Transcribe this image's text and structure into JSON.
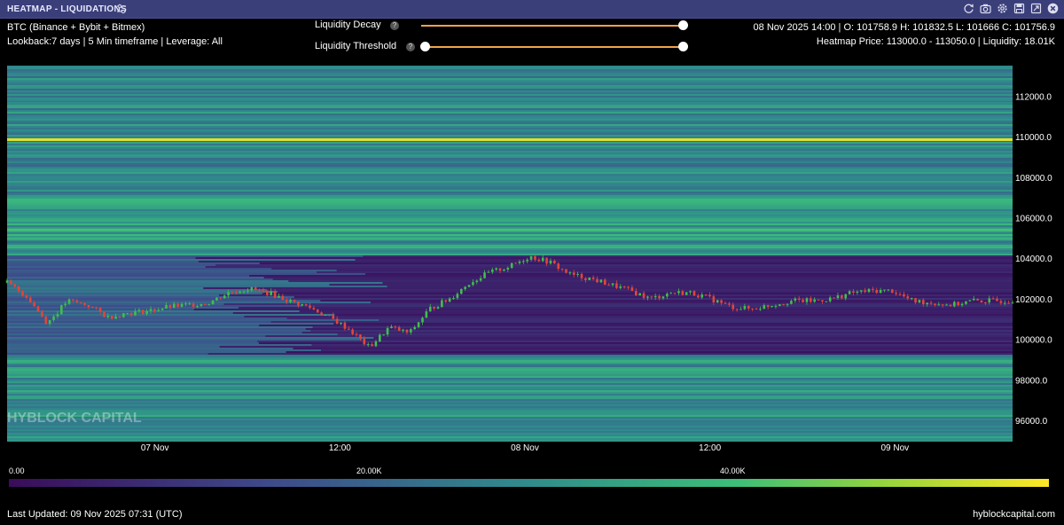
{
  "window": {
    "title": "HEATMAP - LIQUIDATIONS",
    "icons": [
      "settings-sliders-icon",
      "refresh-icon",
      "camera-icon",
      "gear-icon",
      "save-icon",
      "expand-icon",
      "close-icon"
    ]
  },
  "info": {
    "asset": "BTC (Binance + Bybit + Bitmex)",
    "params": "Lookback:7 days | 5 Min timeframe | Leverage: All"
  },
  "controls": {
    "decay_label": "Liquidity Decay",
    "decay_value": 1.0,
    "threshold_label": "Liquidity Threshold",
    "threshold_range": [
      0.0,
      1.0
    ],
    "help_glyph": "?"
  },
  "ohlc": {
    "line": "08 Nov 2025 14:00 | O: 101758.9 H: 101832.5 L: 101666 C: 101756.9",
    "heatmap": "Heatmap Price: 113000.0 - 113050.0 | Liquidity: 18.01K"
  },
  "chart_data": {
    "type": "heatmap",
    "title": "",
    "xlabel": "",
    "ylabel": "",
    "ylim": [
      95000,
      113500
    ],
    "x_ticks": [
      "07 Nov",
      "12:00",
      "08 Nov",
      "12:00",
      "09 Nov"
    ],
    "y_ticks": [
      "112000.0",
      "110000.0",
      "108000.0",
      "106000.0",
      "104000.0",
      "102000.0",
      "100000.0",
      "98000.0",
      "96000.0"
    ],
    "colorbar": {
      "ticks": [
        "0.00",
        "20.00K",
        "40.00K"
      ],
      "colors": [
        "#3a0c5a",
        "#3e4a8a",
        "#2f8c8c",
        "#3cbf78",
        "#9ad63a",
        "#fde725"
      ]
    },
    "bright_bands": [
      {
        "price": 109850,
        "liquidity": 52000
      },
      {
        "price": 105400,
        "liquidity": 34000
      },
      {
        "price": 111650,
        "liquidity": 22000
      },
      {
        "price": 104800,
        "liquidity": 18000
      }
    ],
    "price_series": {
      "name": "",
      "x": [
        0,
        0.02,
        0.04,
        0.06,
        0.08,
        0.1,
        0.12,
        0.14,
        0.16,
        0.18,
        0.2,
        0.22,
        0.24,
        0.26,
        0.28,
        0.3,
        0.32,
        0.34,
        0.36,
        0.38,
        0.4,
        0.42,
        0.44,
        0.46,
        0.48,
        0.5,
        0.52,
        0.54,
        0.56,
        0.58,
        0.6,
        0.62,
        0.64,
        0.66,
        0.68,
        0.7,
        0.72,
        0.74,
        0.76,
        0.78,
        0.8,
        0.82,
        0.84,
        0.86,
        0.88,
        0.9,
        0.92,
        0.94,
        0.96,
        0.98,
        1.0
      ],
      "y": [
        102800,
        102100,
        100800,
        101900,
        101700,
        101100,
        101300,
        101400,
        101600,
        101700,
        101800,
        102300,
        102500,
        102300,
        101900,
        101600,
        101100,
        100500,
        99600,
        100600,
        100300,
        101500,
        102000,
        102800,
        103300,
        103600,
        104100,
        103800,
        103200,
        103000,
        102700,
        102400,
        102000,
        102300,
        102300,
        102000,
        101600,
        101500,
        101700,
        101900,
        101900,
        102000,
        102300,
        102400,
        102400,
        101900,
        101800,
        101700,
        101900,
        101900,
        101900
      ]
    }
  },
  "footer": {
    "updated": "Last Updated: 09 Nov 2025 07:31 (UTC)",
    "site": "hyblockcapital.com"
  },
  "watermark": "HYBLOCK CAPITAL",
  "colors": {
    "accent": "#f0a34a",
    "titlebar": "#3a3f7a",
    "candle_up": "#3fbf4a",
    "candle_down": "#e0463a"
  }
}
